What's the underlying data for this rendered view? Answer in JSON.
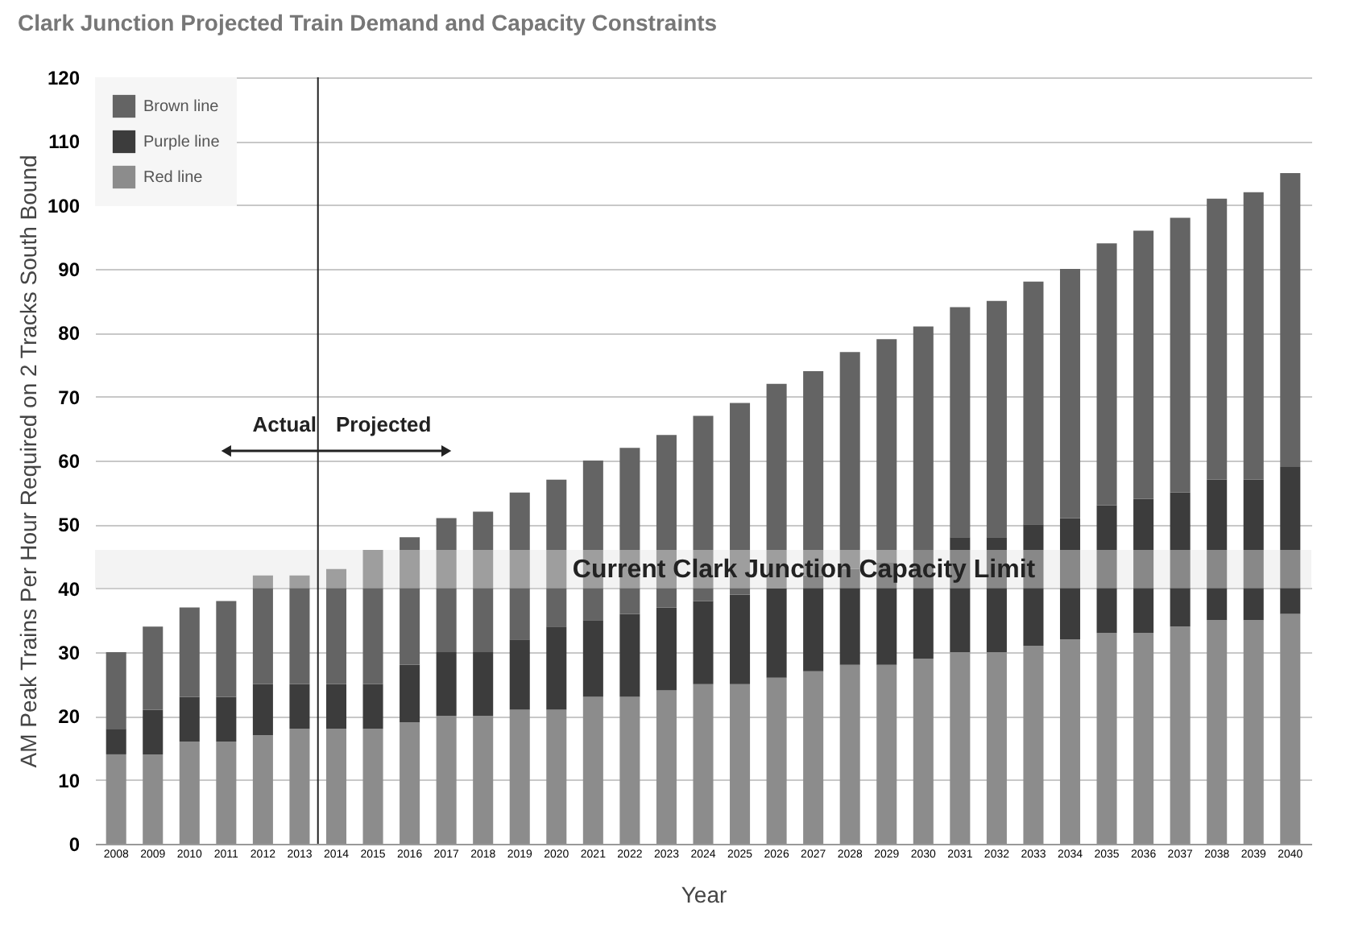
{
  "chart_data": {
    "type": "bar",
    "stacked": true,
    "title": "Clark Junction Projected Train Demand and Capacity Constraints",
    "xlabel": "Year",
    "ylabel": "AM Peak Trains Per Hour Required on 2 Tracks South Bound",
    "categories": [
      "2008",
      "2009",
      "2010",
      "2011",
      "2012",
      "2013",
      "2014",
      "2015",
      "2016",
      "2017",
      "2018",
      "2019",
      "2020",
      "2021",
      "2022",
      "2023",
      "2024",
      "2025",
      "2026",
      "2027",
      "2028",
      "2029",
      "2030",
      "2031",
      "2032",
      "2033",
      "2034",
      "2035",
      "2036",
      "2037",
      "2038",
      "2039",
      "2040"
    ],
    "series": [
      {
        "name": "Red line",
        "color": "#8c8c8c",
        "values": [
          14,
          14,
          16,
          16,
          17,
          18,
          18,
          18,
          19,
          20,
          20,
          21,
          21,
          23,
          23,
          24,
          25,
          25,
          26,
          27,
          28,
          28,
          29,
          30,
          30,
          31,
          32,
          33,
          33,
          34,
          35,
          35,
          36
        ]
      },
      {
        "name": "Purple line",
        "color": "#3c3c3c",
        "values": [
          4,
          7,
          7,
          7,
          8,
          7,
          7,
          7,
          9,
          10,
          10,
          11,
          13,
          12,
          13,
          13,
          13,
          14,
          14,
          15,
          15,
          16,
          17,
          18,
          18,
          19,
          19,
          20,
          21,
          21,
          22,
          22,
          23
        ]
      },
      {
        "name": "Brown line",
        "color": "#646464",
        "values": [
          12,
          13,
          14,
          15,
          17,
          17,
          18,
          21,
          20,
          21,
          22,
          23,
          23,
          25,
          26,
          27,
          29,
          30,
          32,
          32,
          34,
          35,
          35,
          36,
          37,
          38,
          39,
          41,
          42,
          43,
          44,
          45,
          46
        ]
      }
    ],
    "ylim": [
      0,
      120
    ],
    "yticks": [
      0,
      10,
      20,
      30,
      40,
      50,
      60,
      70,
      80,
      90,
      100,
      110,
      120
    ],
    "grid": "y",
    "legend": "top left",
    "bands": [
      {
        "axis": "y",
        "from": 40,
        "to": 46,
        "label": "Current Clark Junction Capacity Limit",
        "color": "#e4e4e4"
      }
    ],
    "ref_lines": [
      {
        "axis": "x",
        "value": "2014",
        "color": "#222222"
      }
    ],
    "annotations": [
      "Actual",
      "Projected"
    ]
  }
}
